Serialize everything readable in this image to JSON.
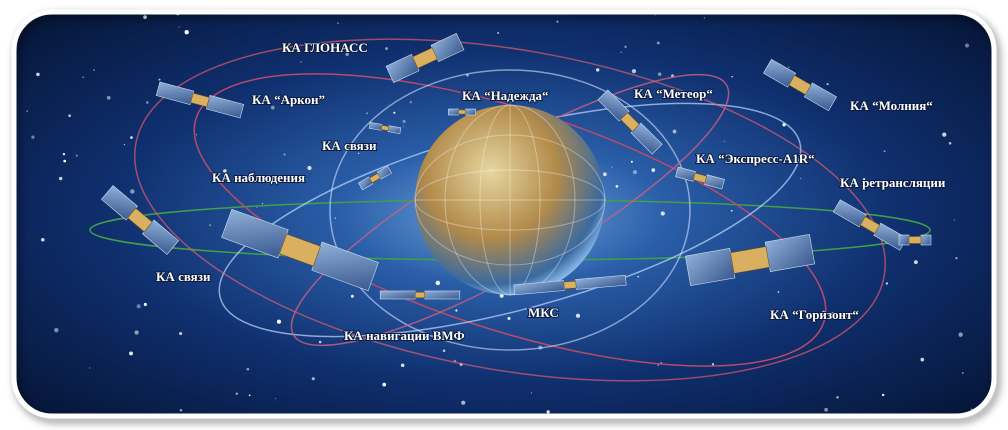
{
  "labels": {
    "glonass": "КА ГЛОНАСС",
    "arkon": "КА “Аркон”",
    "nadezhda": "КА “Надежда“",
    "meteor": "КА “Метеор“",
    "molniya": "КА “Молния“",
    "svyazi_top": "КА связи",
    "nablyudeniya": "КА наблюдения",
    "express": "КА “Экспресс-A1R“",
    "retranslyatsii": "КА ретрансляции",
    "svyazi_left": "КА связи",
    "navigatsii": "КА навигации ВМФ",
    "mks": "МКС",
    "gorizont": "КА “Горизонт“"
  }
}
